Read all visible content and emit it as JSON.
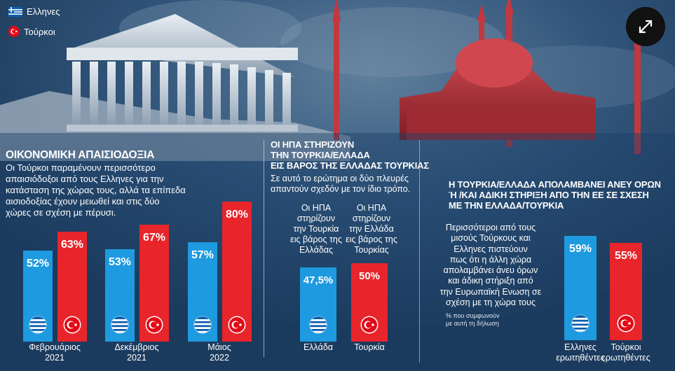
{
  "legend": {
    "greeks_label": "Ελληνες",
    "turks_label": "Τούρκοι"
  },
  "colors": {
    "greek_bar": "#1e9ae0",
    "turk_bar": "#e8252b",
    "flag_blue": "#0d5eaf"
  },
  "icons": [
    "expand-icon",
    "greek-flag-icon",
    "turkish-flag-icon"
  ],
  "section1": {
    "title": "ΟΙΚΟΝΟΜΙΚΗ ΑΠΑΙΣΙΟΔΟΞΙΑ",
    "body": [
      "Οι Τούρκοι παραμένουν περισσότερο",
      "απαισιόδοξοι από τους Ελληνες για την",
      "κατάσταση της χώρας τους, αλλά τα επίπεδα",
      "αισιοδοξίας έχουν μειωθεί και στις δύο",
      "χώρες σε σχέση με πέρυσι."
    ]
  },
  "section2": {
    "title": [
      "ΟΙ ΗΠΑ ΣΤΗΡΙΖΟΥΝ",
      "ΤΗΝ ΤΟΥΡΚΙΑ/ΕΛΛΑΔΑ",
      "ΕΙΣ ΒΑΡΟΣ ΤΗΣ ΕΛΛΑΔΑΣ ΤΟΥΡΚΙΑΣ"
    ],
    "body": [
      "Σε αυτό το ερώτημα οι δύο πλευρές",
      "απαντούν σχεδόν με τον ίδιο τρόπο."
    ],
    "greece_caption": [
      "Οι ΗΠΑ",
      "στηρίζουν",
      "την Τουρκία",
      "εις βάρος της",
      "Ελλάδας"
    ],
    "turkey_caption": [
      "Οι ΗΠΑ",
      "στηρίζουν",
      "την Ελλάδα",
      "εις βάρος της",
      "Τουρκίας"
    ]
  },
  "section3": {
    "title": [
      "Η ΤΟΥΡΚΙΑ/ΕΛΛΑΔΑ ΑΠΟΛΑΜΒΑΝΕΙ ΑΝΕΥ ΟΡΩΝ",
      "Ή /ΚΑΙ ΑΔΙΚΗ ΣΤΗΡΙΞΗ ΑΠΟ ΤΗΝ ΕΕ ΣΕ ΣΧΕΣΗ",
      "ΜΕ ΤΗΝ ΕΛΛΑΔΑ/ΤΟΥΡΚΙΑ"
    ],
    "body": [
      "Περισσότεροι από τους",
      "μισούς Τούρκους και",
      "Ελληνες πιστεύουν",
      "πως ότι η άλλη χώρα",
      "απολαμβάνει άνευ όρων",
      "και άδικη στήριξη από",
      "την Ευρωπαϊκή Ενωση σε",
      "σχέση με τη χώρα τους"
    ],
    "note": [
      "% που συμφωνούν",
      "με αυτή τη δήλωση"
    ]
  },
  "chart_data": [
    {
      "type": "bar",
      "title": "ΟΙΚΟΝΟΜΙΚΗ ΑΠΑΙΣΙΟΔΟΞΙΑ",
      "categories": [
        "Φεβρουάριος 2021",
        "Δεκέμβριος 2021",
        "Μάιος 2022"
      ],
      "category_lines": [
        [
          "Φεβρουάριος",
          "2021"
        ],
        [
          "Δεκέμβριος",
          "2021"
        ],
        [
          "Μάιος",
          "2022"
        ]
      ],
      "series": [
        {
          "name": "Ελληνες",
          "values": [
            52,
            53,
            57
          ],
          "labels": [
            "52%",
            "53%",
            "57%"
          ]
        },
        {
          "name": "Τούρκοι",
          "values": [
            63,
            67,
            80
          ],
          "labels": [
            "63%",
            "67%",
            "80%"
          ]
        }
      ],
      "ylim": [
        0,
        100
      ]
    },
    {
      "type": "bar",
      "title": "ΟΙ ΗΠΑ ΣΤΗΡΙΖΟΥΝ ΤΗΝ ΤΟΥΡΚΙΑ/ΕΛΛΑΔΑ ΕΙΣ ΒΑΡΟΣ ΤΗΣ ΕΛΛΑΔΑΣ ΤΟΥΡΚΙΑΣ",
      "categories": [
        "Ελλάδα",
        "Τουρκία"
      ],
      "values": [
        47.5,
        50
      ],
      "labels": [
        "47,5%",
        "50%"
      ],
      "ylim": [
        0,
        100
      ]
    },
    {
      "type": "bar",
      "title": "Η ΤΟΥΡΚΙΑ/ΕΛΛΑΔΑ ΑΠΟΛΑΜΒΑΝΕΙ ΑΝΕΥ ΟΡΩΝ Ή /ΚΑΙ ΑΔΙΚΗ ΣΤΗΡΙΞΗ ΑΠΟ ΤΗΝ ΕΕ ΣΕ ΣΧΕΣΗ ΜΕ ΤΗΝ ΕΛΛΑΔΑ/ΤΟΥΡΚΙΑ",
      "categories": [
        "Ελληνες ερωτηθέντες",
        "Τούρκοι ερωτηθέντες"
      ],
      "category_lines": [
        [
          "Ελληνες",
          "ερωτηθέντες"
        ],
        [
          "Τούρκοι",
          "ερωτηθέντες"
        ]
      ],
      "values": [
        59,
        55
      ],
      "labels": [
        "59%",
        "55%"
      ],
      "ylim": [
        0,
        100
      ]
    }
  ]
}
